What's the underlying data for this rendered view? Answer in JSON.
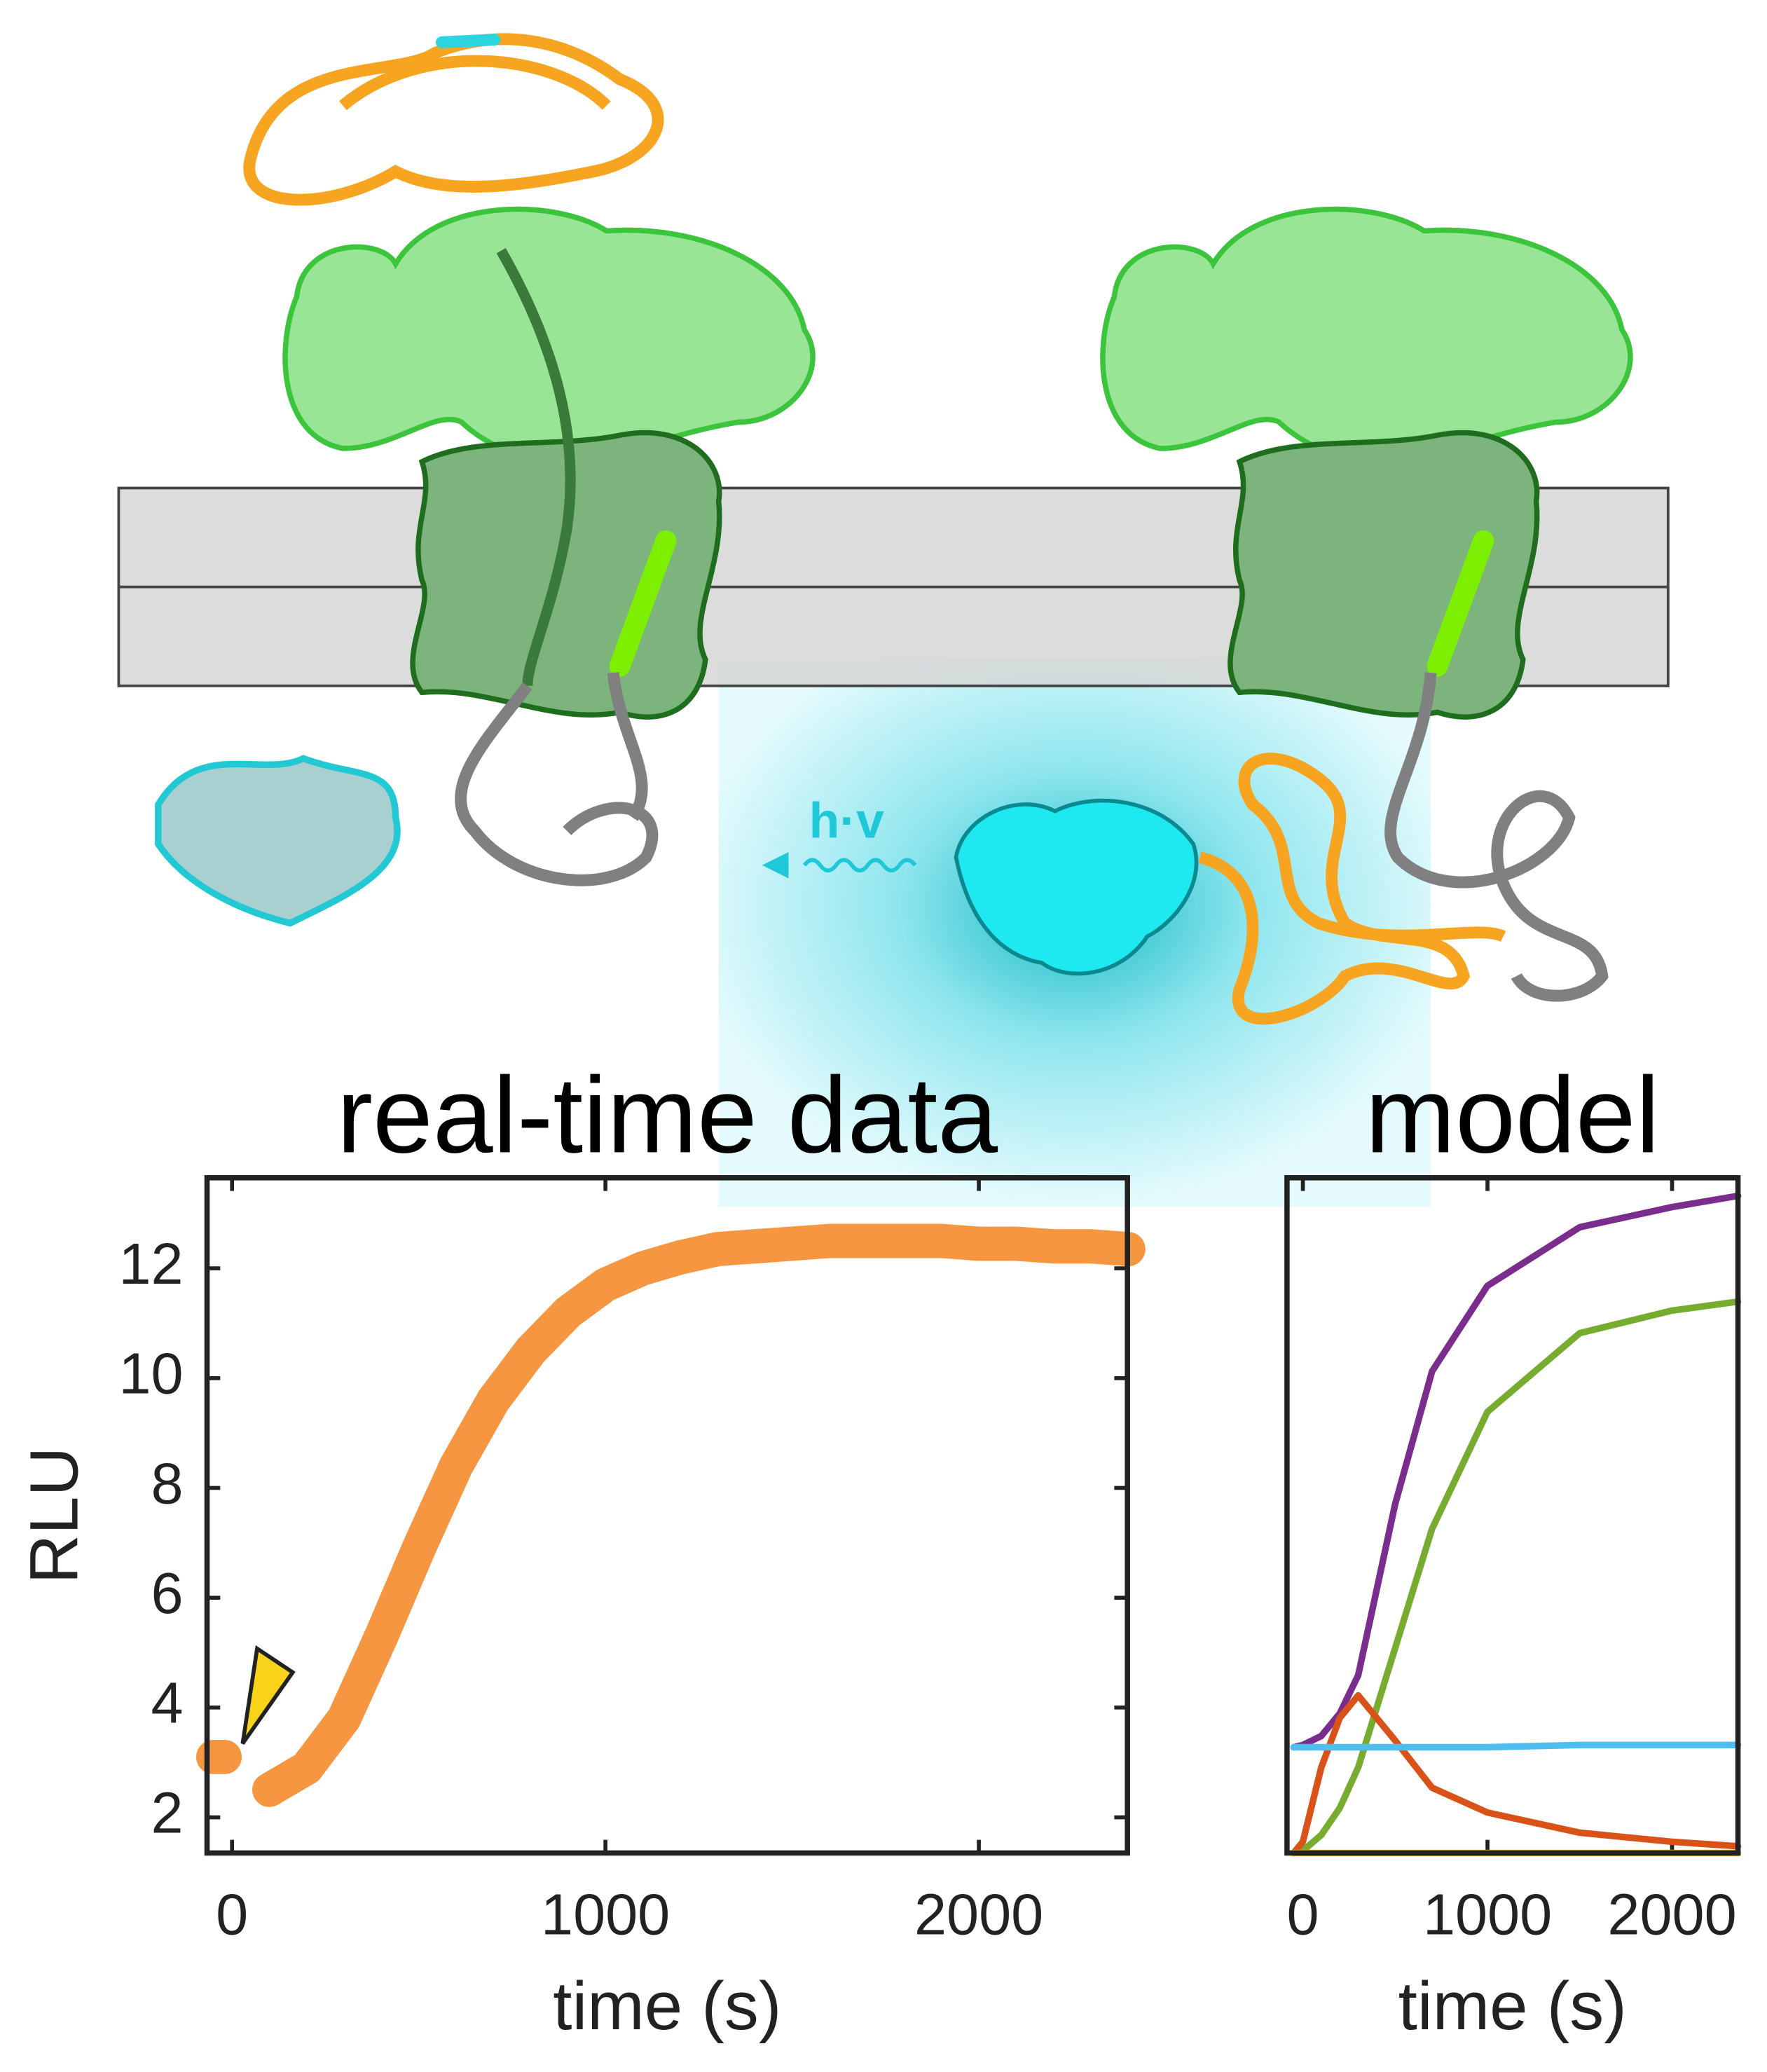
{
  "diagram": {
    "label": "h·v"
  },
  "chart_data": [
    {
      "type": "line",
      "title": "real-time data",
      "xlabel": "time (s)",
      "ylabel": "RLU",
      "x": [
        -50,
        -20,
        20,
        100,
        200,
        300,
        400,
        500,
        600,
        700,
        800,
        900,
        1000,
        1100,
        1200,
        1300,
        1400,
        1500,
        1600,
        1700,
        1800,
        1900,
        2000,
        2100,
        2200,
        2300,
        2400
      ],
      "series": [
        {
          "color": "#f5841f",
          "values": [
            3.1,
            3.1,
            null,
            2.5,
            2.9,
            3.8,
            5.3,
            6.9,
            8.4,
            9.6,
            10.5,
            11.2,
            11.7,
            12.0,
            12.2,
            12.35,
            12.4,
            12.45,
            12.5,
            12.5,
            12.5,
            12.5,
            12.45,
            12.45,
            12.4,
            12.4,
            12.35
          ]
        }
      ],
      "xlim": [
        -67,
        2398
      ],
      "ylim": [
        1.35,
        13.65
      ],
      "xticks": [
        0,
        1000,
        2000
      ],
      "yticks": [
        2,
        4,
        6,
        8,
        10,
        12
      ]
    },
    {
      "type": "line",
      "title": "model",
      "xlabel": "time (s)",
      "x": [
        -50,
        0,
        100,
        200,
        300,
        500,
        700,
        1000,
        1500,
        2000,
        2357
      ],
      "series": [
        {
          "color": "#7b2d8e",
          "values": [
            0.47,
            0.48,
            0.52,
            0.62,
            0.79,
            1.55,
            2.14,
            2.52,
            2.78,
            2.87,
            2.92
          ]
        },
        {
          "color": "#77ac30",
          "values": [
            0,
            0.01,
            0.08,
            0.2,
            0.38,
            0.91,
            1.44,
            1.96,
            2.31,
            2.41,
            2.45
          ]
        },
        {
          "color": "#d95319",
          "values": [
            0,
            0.05,
            0.38,
            0.6,
            0.7,
            0.5,
            0.29,
            0.18,
            0.09,
            0.05,
            0.03
          ]
        },
        {
          "color": "#4dbeee",
          "values": [
            0.47,
            0.47,
            0.47,
            0.47,
            0.47,
            0.47,
            0.47,
            0.47,
            0.48,
            0.48,
            0.48
          ]
        },
        {
          "color": "#edb120",
          "values": [
            0,
            0,
            0,
            0,
            0,
            0,
            0,
            0,
            0,
            0,
            0
          ]
        }
      ],
      "xlim": [
        -86,
        2357
      ],
      "ylim": [
        0,
        3
      ],
      "xticks": [
        0,
        1000,
        2000
      ]
    }
  ]
}
